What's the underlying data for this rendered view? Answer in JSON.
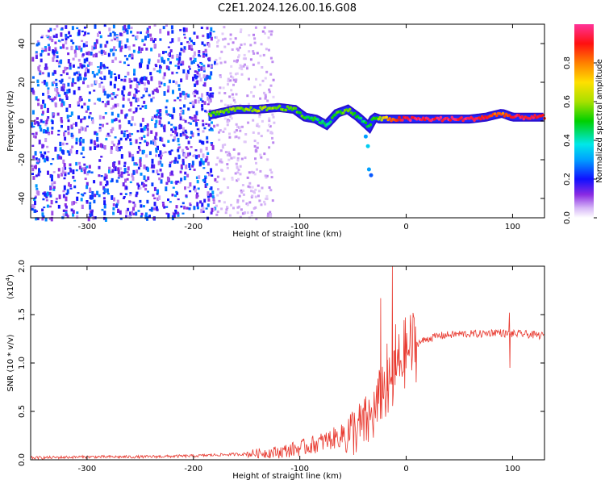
{
  "title": "C2E1.2024.126.00.16.G08",
  "chart_data": [
    {
      "type": "heatmap",
      "xlabel": "Height of straight line (km)",
      "ylabel": "Frequency (Hz)",
      "xlim": [
        -353,
        130
      ],
      "ylim": [
        -50,
        50
      ],
      "x_ticks": [
        -300,
        -200,
        -100,
        0,
        100
      ],
      "y_ticks": [
        -40,
        -20,
        0,
        20,
        40
      ],
      "colorbar": {
        "label": "Normalized spectral amplitude",
        "range": [
          0.0,
          1.0
        ],
        "ticks": [
          0.0,
          0.2,
          0.4,
          0.6,
          0.8
        ],
        "colormap": "rainbow (white-purple-blue-cyan-green-yellow-orange-red-pink)"
      },
      "signal_ridge": {
        "x": [
          -185,
          -160,
          -140,
          -120,
          -105,
          -95,
          -85,
          -75,
          -65,
          -55,
          -45,
          -35,
          -30,
          -25,
          -15,
          0,
          30,
          60,
          75,
          90,
          100,
          130
        ],
        "frequency": [
          3,
          6,
          6,
          7,
          6,
          2,
          1,
          -2,
          4,
          6,
          2,
          -3,
          2,
          1,
          1,
          1,
          1,
          1,
          2,
          4,
          2,
          2
        ],
        "amplitude": [
          0.55,
          0.58,
          0.6,
          0.58,
          0.55,
          0.5,
          0.48,
          0.45,
          0.5,
          0.55,
          0.5,
          0.45,
          0.5,
          0.6,
          0.8,
          0.95,
          0.95,
          0.95,
          0.9,
          0.8,
          0.92,
          0.9
        ]
      },
      "noise_region": {
        "x_range": [
          -353,
          -180
        ],
        "frequency_range": [
          -50,
          50
        ],
        "amplitude_range": [
          0.05,
          0.3
        ]
      }
    },
    {
      "type": "line",
      "xlabel": "Height of straight line (km)",
      "ylabel": "SNR (10 * v/v)",
      "scale_note": "(x10",
      "scale_exp": "4",
      "scale_close": ")",
      "xlim": [
        -353,
        130
      ],
      "ylim": [
        0.0,
        2.0
      ],
      "x_ticks": [
        -300,
        -200,
        -100,
        0,
        100
      ],
      "y_ticks": [
        0.0,
        0.5,
        1.0,
        1.5,
        2.0
      ],
      "y_tick_labels": [
        "0.0",
        "0.5",
        "1.0",
        "1.5",
        "2.0"
      ],
      "series": [
        {
          "color": "#e8382e",
          "x": [
            -353,
            -300,
            -250,
            -200,
            -180,
            -150,
            -120,
            -100,
            -80,
            -60,
            -45,
            -35,
            -27,
            -22,
            -17,
            -12,
            -8,
            -4,
            0,
            5,
            10,
            20,
            30,
            50,
            70,
            85,
            95,
            100,
            110,
            120,
            130
          ],
          "y": [
            0.02,
            0.03,
            0.03,
            0.04,
            0.05,
            0.06,
            0.08,
            0.12,
            0.18,
            0.25,
            0.32,
            0.4,
            0.55,
            0.75,
            0.7,
            0.8,
            0.95,
            1.05,
            1.12,
            1.17,
            1.2,
            1.25,
            1.28,
            1.3,
            1.3,
            1.32,
            1.3,
            1.3,
            1.3,
            1.29,
            1.28
          ]
        }
      ],
      "spikes": [
        {
          "x": -24,
          "y": 1.67
        },
        {
          "x": -18,
          "y": 1.2
        },
        {
          "x": -13,
          "y": 2.0
        },
        {
          "x": -10,
          "y": 1.4
        },
        {
          "x": 97,
          "y": 1.52
        },
        {
          "x": 97.5,
          "y": 0.95
        }
      ]
    }
  ]
}
